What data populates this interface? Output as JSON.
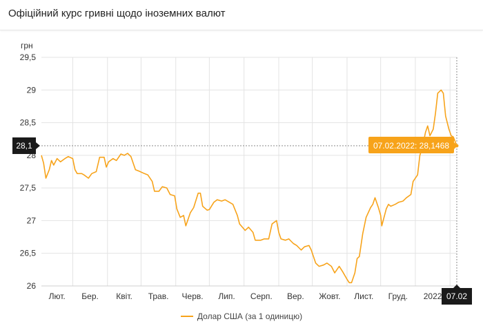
{
  "header": {
    "title": "Офіційний курс гривні щодо іноземних валют"
  },
  "colors": {
    "series": "#f7a31a",
    "grid": "#e3e3e3",
    "tooltip_bg": "#f7a31a",
    "marker_bg": "#1a1a1a"
  },
  "chart_data": {
    "type": "line",
    "ylabel": "грн",
    "ylim": [
      26,
      29.5
    ],
    "y_ticks": [
      "29,5",
      "29",
      "28,5",
      "28",
      "27,5",
      "27",
      "26,5",
      "26"
    ],
    "y_tick_values": [
      29.5,
      29,
      28.5,
      28,
      27.5,
      27,
      26.5,
      26
    ],
    "x_ticks": [
      "Лют.",
      "Бер.",
      "Квіт.",
      "Трав.",
      "Черв.",
      "Лип.",
      "Серп.",
      "Вер.",
      "Жовт.",
      "Лист.",
      "Груд.",
      "2022"
    ],
    "x_range": [
      "2021-02-01",
      "2022-02-07"
    ],
    "grid": true,
    "legend": "bottom-center",
    "crosshair": {
      "y_value_label": "28,1",
      "x_value_label": "07.02"
    },
    "tooltip": {
      "text": "07.02.2022: 28,1468"
    },
    "series": [
      {
        "name": "Долар США (за 1 одиницю)",
        "points": [
          [
            "2021-02-01",
            28.0
          ],
          [
            "2021-02-03",
            27.88
          ],
          [
            "2021-02-05",
            27.65
          ],
          [
            "2021-02-08",
            27.78
          ],
          [
            "2021-02-10",
            27.92
          ],
          [
            "2021-02-12",
            27.85
          ],
          [
            "2021-02-15",
            27.95
          ],
          [
            "2021-02-18",
            27.9
          ],
          [
            "2021-02-22",
            27.95
          ],
          [
            "2021-02-25",
            27.98
          ],
          [
            "2021-03-01",
            27.95
          ],
          [
            "2021-03-03",
            27.78
          ],
          [
            "2021-03-05",
            27.72
          ],
          [
            "2021-03-09",
            27.72
          ],
          [
            "2021-03-11",
            27.7
          ],
          [
            "2021-03-15",
            27.65
          ],
          [
            "2021-03-18",
            27.72
          ],
          [
            "2021-03-22",
            27.75
          ],
          [
            "2021-03-25",
            27.97
          ],
          [
            "2021-03-29",
            27.97
          ],
          [
            "2021-03-31",
            27.82
          ],
          [
            "2021-04-02",
            27.9
          ],
          [
            "2021-04-06",
            27.95
          ],
          [
            "2021-04-09",
            27.92
          ],
          [
            "2021-04-13",
            28.02
          ],
          [
            "2021-04-16",
            28.0
          ],
          [
            "2021-04-19",
            28.03
          ],
          [
            "2021-04-22",
            27.98
          ],
          [
            "2021-04-26",
            27.78
          ],
          [
            "2021-04-29",
            27.76
          ],
          [
            "2021-05-04",
            27.72
          ],
          [
            "2021-05-07",
            27.7
          ],
          [
            "2021-05-11",
            27.6
          ],
          [
            "2021-05-13",
            27.45
          ],
          [
            "2021-05-17",
            27.45
          ],
          [
            "2021-05-20",
            27.52
          ],
          [
            "2021-05-24",
            27.5
          ],
          [
            "2021-05-27",
            27.4
          ],
          [
            "2021-05-31",
            27.38
          ],
          [
            "2021-06-02",
            27.18
          ],
          [
            "2021-06-05",
            27.05
          ],
          [
            "2021-06-08",
            27.08
          ],
          [
            "2021-06-10",
            26.92
          ],
          [
            "2021-06-14",
            27.12
          ],
          [
            "2021-06-17",
            27.2
          ],
          [
            "2021-06-21",
            27.42
          ],
          [
            "2021-06-23",
            27.42
          ],
          [
            "2021-06-25",
            27.22
          ],
          [
            "2021-06-29",
            27.16
          ],
          [
            "2021-07-01",
            27.17
          ],
          [
            "2021-07-05",
            27.28
          ],
          [
            "2021-07-08",
            27.32
          ],
          [
            "2021-07-12",
            27.3
          ],
          [
            "2021-07-15",
            27.32
          ],
          [
            "2021-07-19",
            27.28
          ],
          [
            "2021-07-22",
            27.25
          ],
          [
            "2021-07-26",
            27.08
          ],
          [
            "2021-07-28",
            26.95
          ],
          [
            "2021-08-02",
            26.85
          ],
          [
            "2021-08-05",
            26.9
          ],
          [
            "2021-08-09",
            26.82
          ],
          [
            "2021-08-11",
            26.7
          ],
          [
            "2021-08-16",
            26.7
          ],
          [
            "2021-08-19",
            26.72
          ],
          [
            "2021-08-23",
            26.72
          ],
          [
            "2021-08-26",
            26.95
          ],
          [
            "2021-08-30",
            27.0
          ],
          [
            "2021-09-01",
            26.82
          ],
          [
            "2021-09-03",
            26.72
          ],
          [
            "2021-09-07",
            26.7
          ],
          [
            "2021-09-10",
            26.72
          ],
          [
            "2021-09-14",
            26.65
          ],
          [
            "2021-09-17",
            26.62
          ],
          [
            "2021-09-21",
            26.55
          ],
          [
            "2021-09-24",
            26.6
          ],
          [
            "2021-09-28",
            26.62
          ],
          [
            "2021-09-30",
            26.55
          ],
          [
            "2021-10-04",
            26.35
          ],
          [
            "2021-10-07",
            26.3
          ],
          [
            "2021-10-11",
            26.32
          ],
          [
            "2021-10-14",
            26.35
          ],
          [
            "2021-10-18",
            26.3
          ],
          [
            "2021-10-21",
            26.2
          ],
          [
            "2021-10-25",
            26.3
          ],
          [
            "2021-10-28",
            26.22
          ],
          [
            "2021-11-01",
            26.1
          ],
          [
            "2021-11-03",
            26.05
          ],
          [
            "2021-11-05",
            26.05
          ],
          [
            "2021-11-08",
            26.2
          ],
          [
            "2021-11-10",
            26.42
          ],
          [
            "2021-11-12",
            26.45
          ],
          [
            "2021-11-15",
            26.8
          ],
          [
            "2021-11-18",
            27.05
          ],
          [
            "2021-11-22",
            27.2
          ],
          [
            "2021-11-24",
            27.25
          ],
          [
            "2021-11-26",
            27.35
          ],
          [
            "2021-11-29",
            27.2
          ],
          [
            "2021-12-01",
            27.08
          ],
          [
            "2021-12-02",
            26.92
          ],
          [
            "2021-12-06",
            27.18
          ],
          [
            "2021-12-08",
            27.25
          ],
          [
            "2021-12-10",
            27.22
          ],
          [
            "2021-12-14",
            27.25
          ],
          [
            "2021-12-17",
            27.28
          ],
          [
            "2021-12-21",
            27.3
          ],
          [
            "2021-12-24",
            27.35
          ],
          [
            "2021-12-28",
            27.4
          ],
          [
            "2021-12-30",
            27.6
          ],
          [
            "2022-01-03",
            27.7
          ],
          [
            "2022-01-05",
            28.0
          ],
          [
            "2022-01-07",
            28.1
          ],
          [
            "2022-01-10",
            28.35
          ],
          [
            "2022-01-12",
            28.45
          ],
          [
            "2022-01-14",
            28.3
          ],
          [
            "2022-01-17",
            28.4
          ],
          [
            "2022-01-19",
            28.65
          ],
          [
            "2022-01-21",
            28.95
          ],
          [
            "2022-01-24",
            29.0
          ],
          [
            "2022-01-26",
            28.95
          ],
          [
            "2022-01-28",
            28.6
          ],
          [
            "2022-01-31",
            28.4
          ],
          [
            "2022-02-02",
            28.3
          ],
          [
            "2022-02-04",
            28.28
          ],
          [
            "2022-02-07",
            28.1468
          ]
        ]
      }
    ]
  }
}
